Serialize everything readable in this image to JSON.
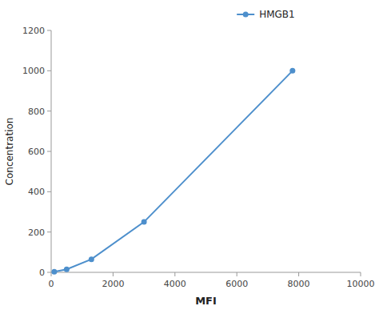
{
  "chart_data": {
    "type": "line",
    "x": [
      100,
      500,
      1300,
      3000,
      7800
    ],
    "series": [
      {
        "name": "HMGB1",
        "color": "#4d8fcc",
        "values": [
          3,
          15,
          65,
          250,
          1000
        ],
        "marker": "circle"
      }
    ],
    "xlabel": "MFI",
    "ylabel": "Concentration",
    "xlim": [
      0,
      10000
    ],
    "ylim": [
      0,
      1200
    ],
    "xticks": [
      0,
      2000,
      4000,
      6000,
      8000,
      10000
    ],
    "yticks": [
      0,
      200,
      400,
      600,
      800,
      1000,
      1200
    ],
    "grid": false,
    "legend": "top"
  }
}
